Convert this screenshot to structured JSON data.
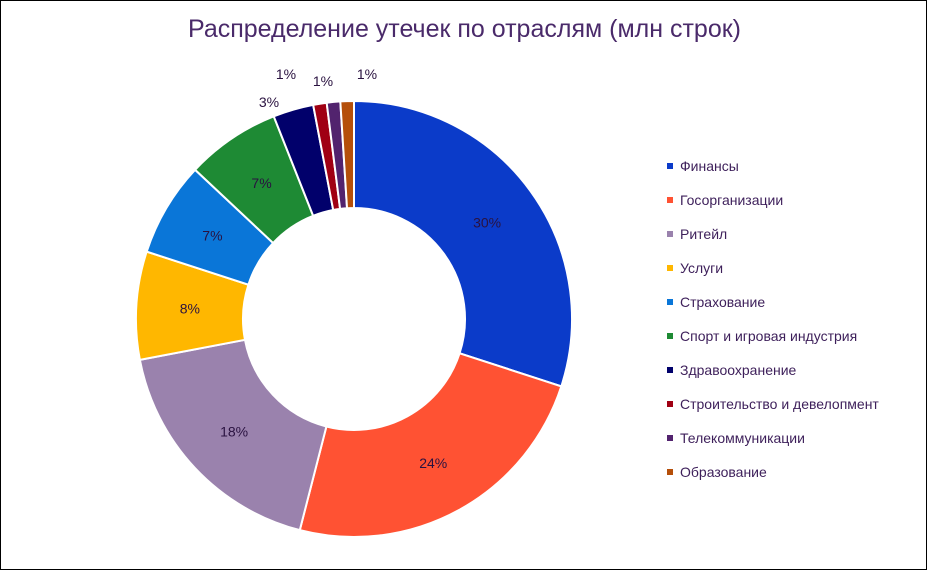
{
  "chart_data": {
    "type": "pie",
    "title": "Распределение утечек по отраслям (млн строк)",
    "donut": true,
    "legend_position": "right",
    "categories": [
      "Финансы",
      "Госорганизации",
      "Ритейл",
      "Услуги",
      "Страхование",
      "Спорт и игровая индустрия",
      "Здравоохранение",
      "Строительство и девелопмент",
      "Телекоммуникации",
      "Образование"
    ],
    "values": [
      30,
      24,
      18,
      8,
      7,
      7,
      3,
      1,
      1,
      1
    ],
    "data_labels": [
      "30%",
      "24%",
      "18%",
      "8%",
      "7%",
      "7%",
      "3%",
      "1%",
      "1%",
      "1%"
    ],
    "colors": [
      "#0b3bc9",
      "#ff5233",
      "#9a82ad",
      "#ffb700",
      "#0a76d8",
      "#1e8a34",
      "#01006b",
      "#a00013",
      "#52236e",
      "#b54f0a"
    ]
  }
}
